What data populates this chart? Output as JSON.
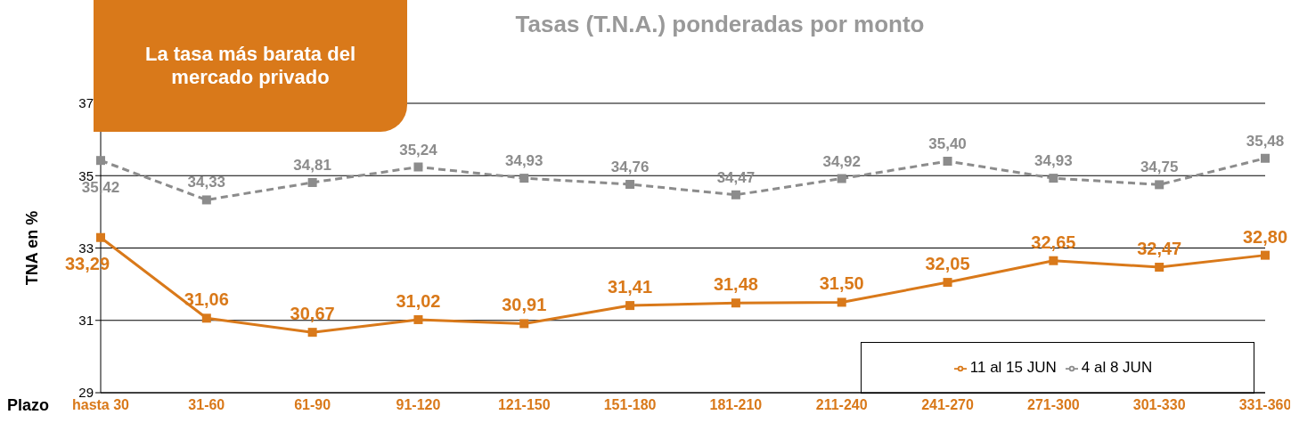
{
  "chart_data": {
    "type": "line",
    "title": "Tasas (T.N.A.) ponderadas por monto",
    "xlabel": "Plazo",
    "ylabel": "TNA en %",
    "annotations": [
      "La tasa más barata del mercado privado"
    ],
    "categories": [
      "hasta 30",
      "31-60",
      "61-90",
      "91-120",
      "121-150",
      "151-180",
      "181-210",
      "211-240",
      "241-270",
      "271-300",
      "301-330",
      "331-360"
    ],
    "series": [
      {
        "name": "11 al 15 JUN",
        "color": "#d9791a",
        "line_style": "solid",
        "values": [
          33.29,
          31.06,
          30.67,
          31.02,
          30.91,
          31.41,
          31.48,
          31.5,
          32.05,
          32.65,
          32.47,
          32.8
        ],
        "value_labels": [
          "33,29",
          "31,06",
          "30,67",
          "31,02",
          "30,91",
          "31,41",
          "31,48",
          "31,50",
          "32,05",
          "32,65",
          "32,47",
          "32,80"
        ]
      },
      {
        "name": "4 al 8 JUN",
        "color": "#8c8c8c",
        "line_style": "dashed",
        "values": [
          35.42,
          34.33,
          34.81,
          35.24,
          34.93,
          34.76,
          34.47,
          34.92,
          35.4,
          34.93,
          34.75,
          35.48
        ],
        "value_labels": [
          "35,42",
          "34,33",
          "34,81",
          "35,24",
          "34,93",
          "34,76",
          "34,47",
          "34,92",
          "35,40",
          "34,93",
          "34,75",
          "35,48"
        ]
      }
    ],
    "ylim": [
      29,
      37
    ],
    "yticks": [
      29,
      31,
      33,
      35,
      37
    ],
    "grid": "y",
    "legend": "bottom right",
    "marker": "square"
  }
}
